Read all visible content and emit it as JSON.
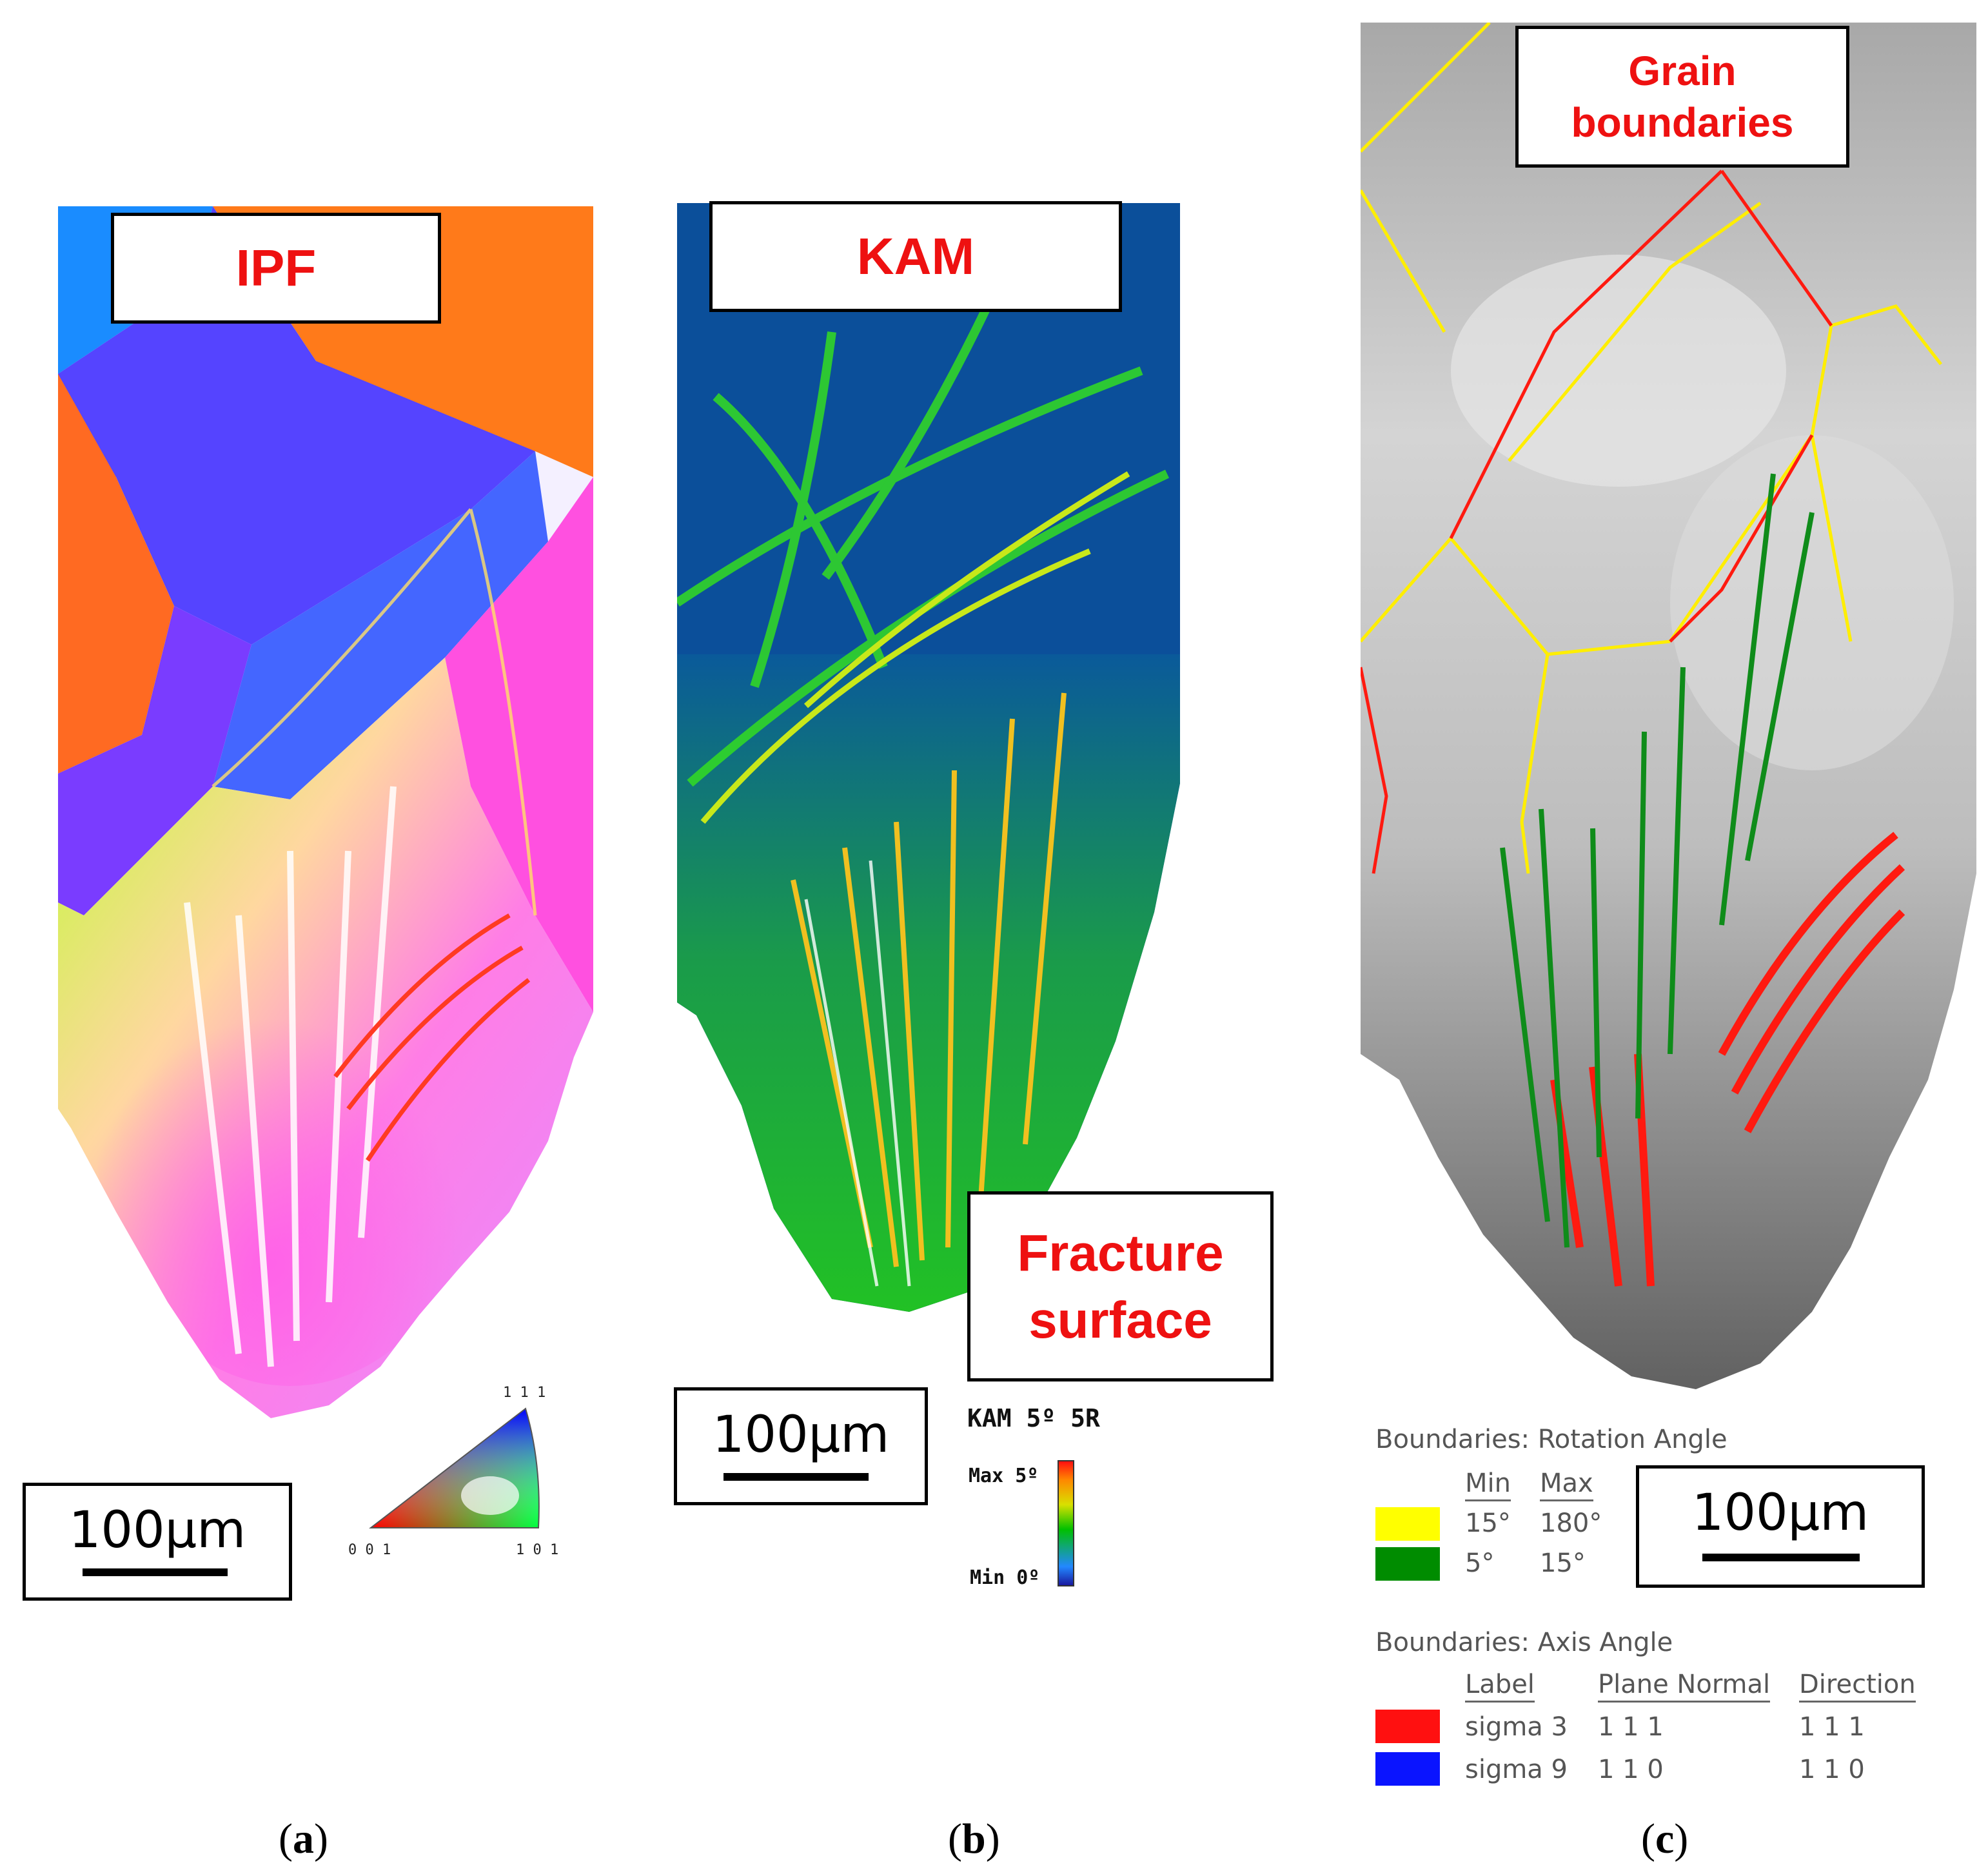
{
  "panels": {
    "a": {
      "title": "IPF",
      "scale": "100µm",
      "caption": "a",
      "ipf_key": {
        "top": "1 1 1",
        "left": "0 0 1",
        "right": "1 0 1"
      }
    },
    "b": {
      "title": "KAM",
      "scale": "100µm",
      "caption": "b",
      "annotation_line1": "Fracture",
      "annotation_line2": "surface",
      "kam": {
        "title": "KAM 5º 5R",
        "max": "Max 5º",
        "min": "Min 0º"
      }
    },
    "c": {
      "title_line1": "Grain",
      "title_line2": "boundaries",
      "scale": "100µm",
      "caption": "c",
      "rotation_legend": {
        "heading": "Boundaries: Rotation Angle",
        "col_min": "Min",
        "col_max": "Max",
        "rows": [
          {
            "color": "#ffff00",
            "min": "15°",
            "max": "180°"
          },
          {
            "color": "#008c00",
            "min": "5°",
            "max": "15°"
          }
        ]
      },
      "axis_legend": {
        "heading": "Boundaries: Axis Angle",
        "col_label": "Label",
        "col_plane": "Plane Normal",
        "col_dir": "Direction",
        "rows": [
          {
            "color": "#ff1010",
            "label": "sigma 3",
            "plane": "1 1 1",
            "dir": "1 1 1"
          },
          {
            "color": "#0a14ff",
            "label": "sigma 9",
            "plane": "1 1 0",
            "dir": "1 1 0"
          }
        ]
      }
    }
  },
  "caption_open": "(",
  "caption_close": ")"
}
